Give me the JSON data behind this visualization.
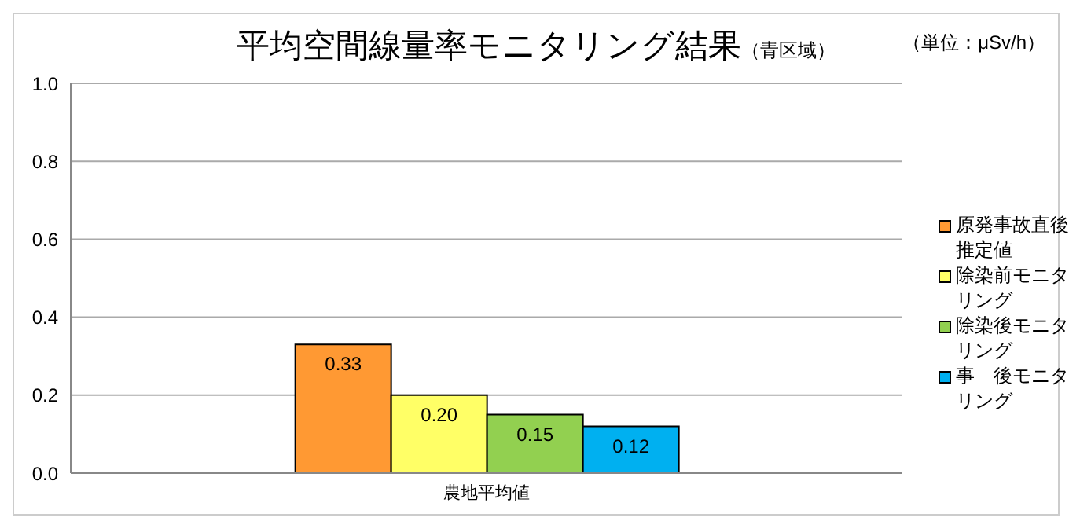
{
  "chart_data": {
    "type": "bar",
    "title": "平均空間線量率モニタリング結果",
    "subtitle": "（青区域）",
    "annotations": [
      "（単位：μSv/h）"
    ],
    "categories": [
      "農地平均値"
    ],
    "series": [
      {
        "name": "原発事故直後推定値",
        "color": "#ff9933",
        "values": [
          0.33
        ],
        "value_labels": [
          "0.33"
        ]
      },
      {
        "name": "除染前モニタリング",
        "color": "#ffff66",
        "values": [
          0.2
        ],
        "value_labels": [
          "0.20"
        ]
      },
      {
        "name": "除染後モニタリング",
        "color": "#92d050",
        "values": [
          0.15
        ],
        "value_labels": [
          "0.15"
        ]
      },
      {
        "name": "事　後モニタリング",
        "color": "#00b0f0",
        "values": [
          0.12
        ],
        "value_labels": [
          "0.12"
        ]
      }
    ],
    "ylim": [
      0,
      1
    ],
    "yticks": [
      {
        "value": 0,
        "label": "0.0"
      },
      {
        "value": 0.2,
        "label": "0.2"
      },
      {
        "value": 0.4,
        "label": "0.4"
      },
      {
        "value": 0.6,
        "label": "0.6"
      },
      {
        "value": 0.8,
        "label": "0.8"
      },
      {
        "value": 1,
        "label": "1.0"
      }
    ],
    "grid": "y",
    "legend": "right"
  }
}
